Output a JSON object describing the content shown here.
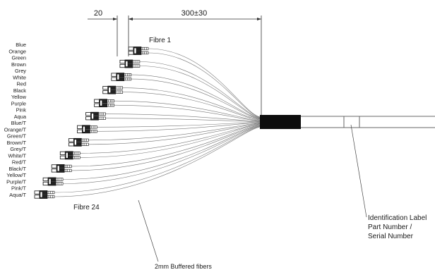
{
  "dimensions": {
    "offset": "20",
    "length": "300±30"
  },
  "labels": {
    "fibre_first": "Fibre 1",
    "fibre_last": "Fibre 24",
    "buffered": "2mm Buffered fibers",
    "id_line1": "Identification Label",
    "id_line2": "Part Number /",
    "id_line3": "Serial Number"
  },
  "fibre_colors": [
    "Blue",
    "Orange",
    "Green",
    "Brown",
    "Grey",
    "White",
    "Red",
    "Black",
    "Yellow",
    "Purple",
    "Pink",
    "Aqua",
    "Blue/T",
    "Orange/T",
    "Green/T",
    "Brown/T",
    "Grey/T",
    "White/T",
    "Red/T",
    "Black/T",
    "Yellow/T",
    "Purple/T",
    "Pink/T",
    "Aqua/T"
  ],
  "connector_pairs": 12,
  "colors": {
    "line": "#555555",
    "dark": "#111111",
    "breakout_body": "#0d0d0d"
  }
}
